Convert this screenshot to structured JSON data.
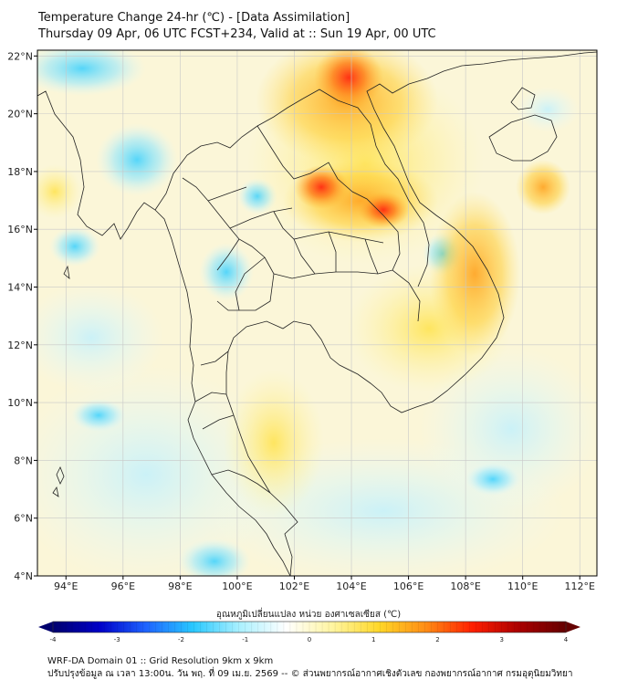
{
  "title": {
    "line1": "Temperature Change 24-hr (℃) - [Data Assimilation]",
    "line2": "Thursday 09 Apr, 06 UTC FCST+234, Valid at :: Sun 19 Apr, 00 UTC"
  },
  "map": {
    "lon_ticks": [
      "94°E",
      "96°E",
      "98°E",
      "100°E",
      "102°E",
      "104°E",
      "106°E",
      "108°E",
      "110°E",
      "112°E"
    ],
    "lat_ticks": [
      "22°N",
      "20°N",
      "18°N",
      "16°N",
      "14°N",
      "12°N",
      "10°N",
      "8°N",
      "6°N",
      "4°N"
    ],
    "lon_range": [
      93,
      112.6
    ],
    "lat_range": [
      4,
      22.2
    ]
  },
  "colorbar": {
    "label": "อุณหภูมิเปลี่ยนแปลง หน่วย องศาเซลเซียส (℃)",
    "ticks": [
      "-4",
      "-3",
      "-2",
      "-1",
      "0",
      "1",
      "2",
      "3",
      "4"
    ],
    "min": -4,
    "max": 4,
    "colors": [
      "#00006e",
      "#0000c8",
      "#1e64ff",
      "#28c8ff",
      "#aaf0ff",
      "#ffffff",
      "#fff5a0",
      "#ffd728",
      "#ff8c14",
      "#ff1e00",
      "#aa0000",
      "#640000"
    ]
  },
  "footer": {
    "line1": "WRF-DA Domain 01 :: Grid Resolution 9km x 9km",
    "line2": "ปรับปรุงข้อมูล ณ เวลา 13:00น. วัน พฤ. ที่ 09 เม.ย. 2569 -- © ส่วนพยากรณ์อากาศเชิงตัวเลข กองพยากรณ์อากาศ กรมอุตุนิยมวิทยา"
  }
}
